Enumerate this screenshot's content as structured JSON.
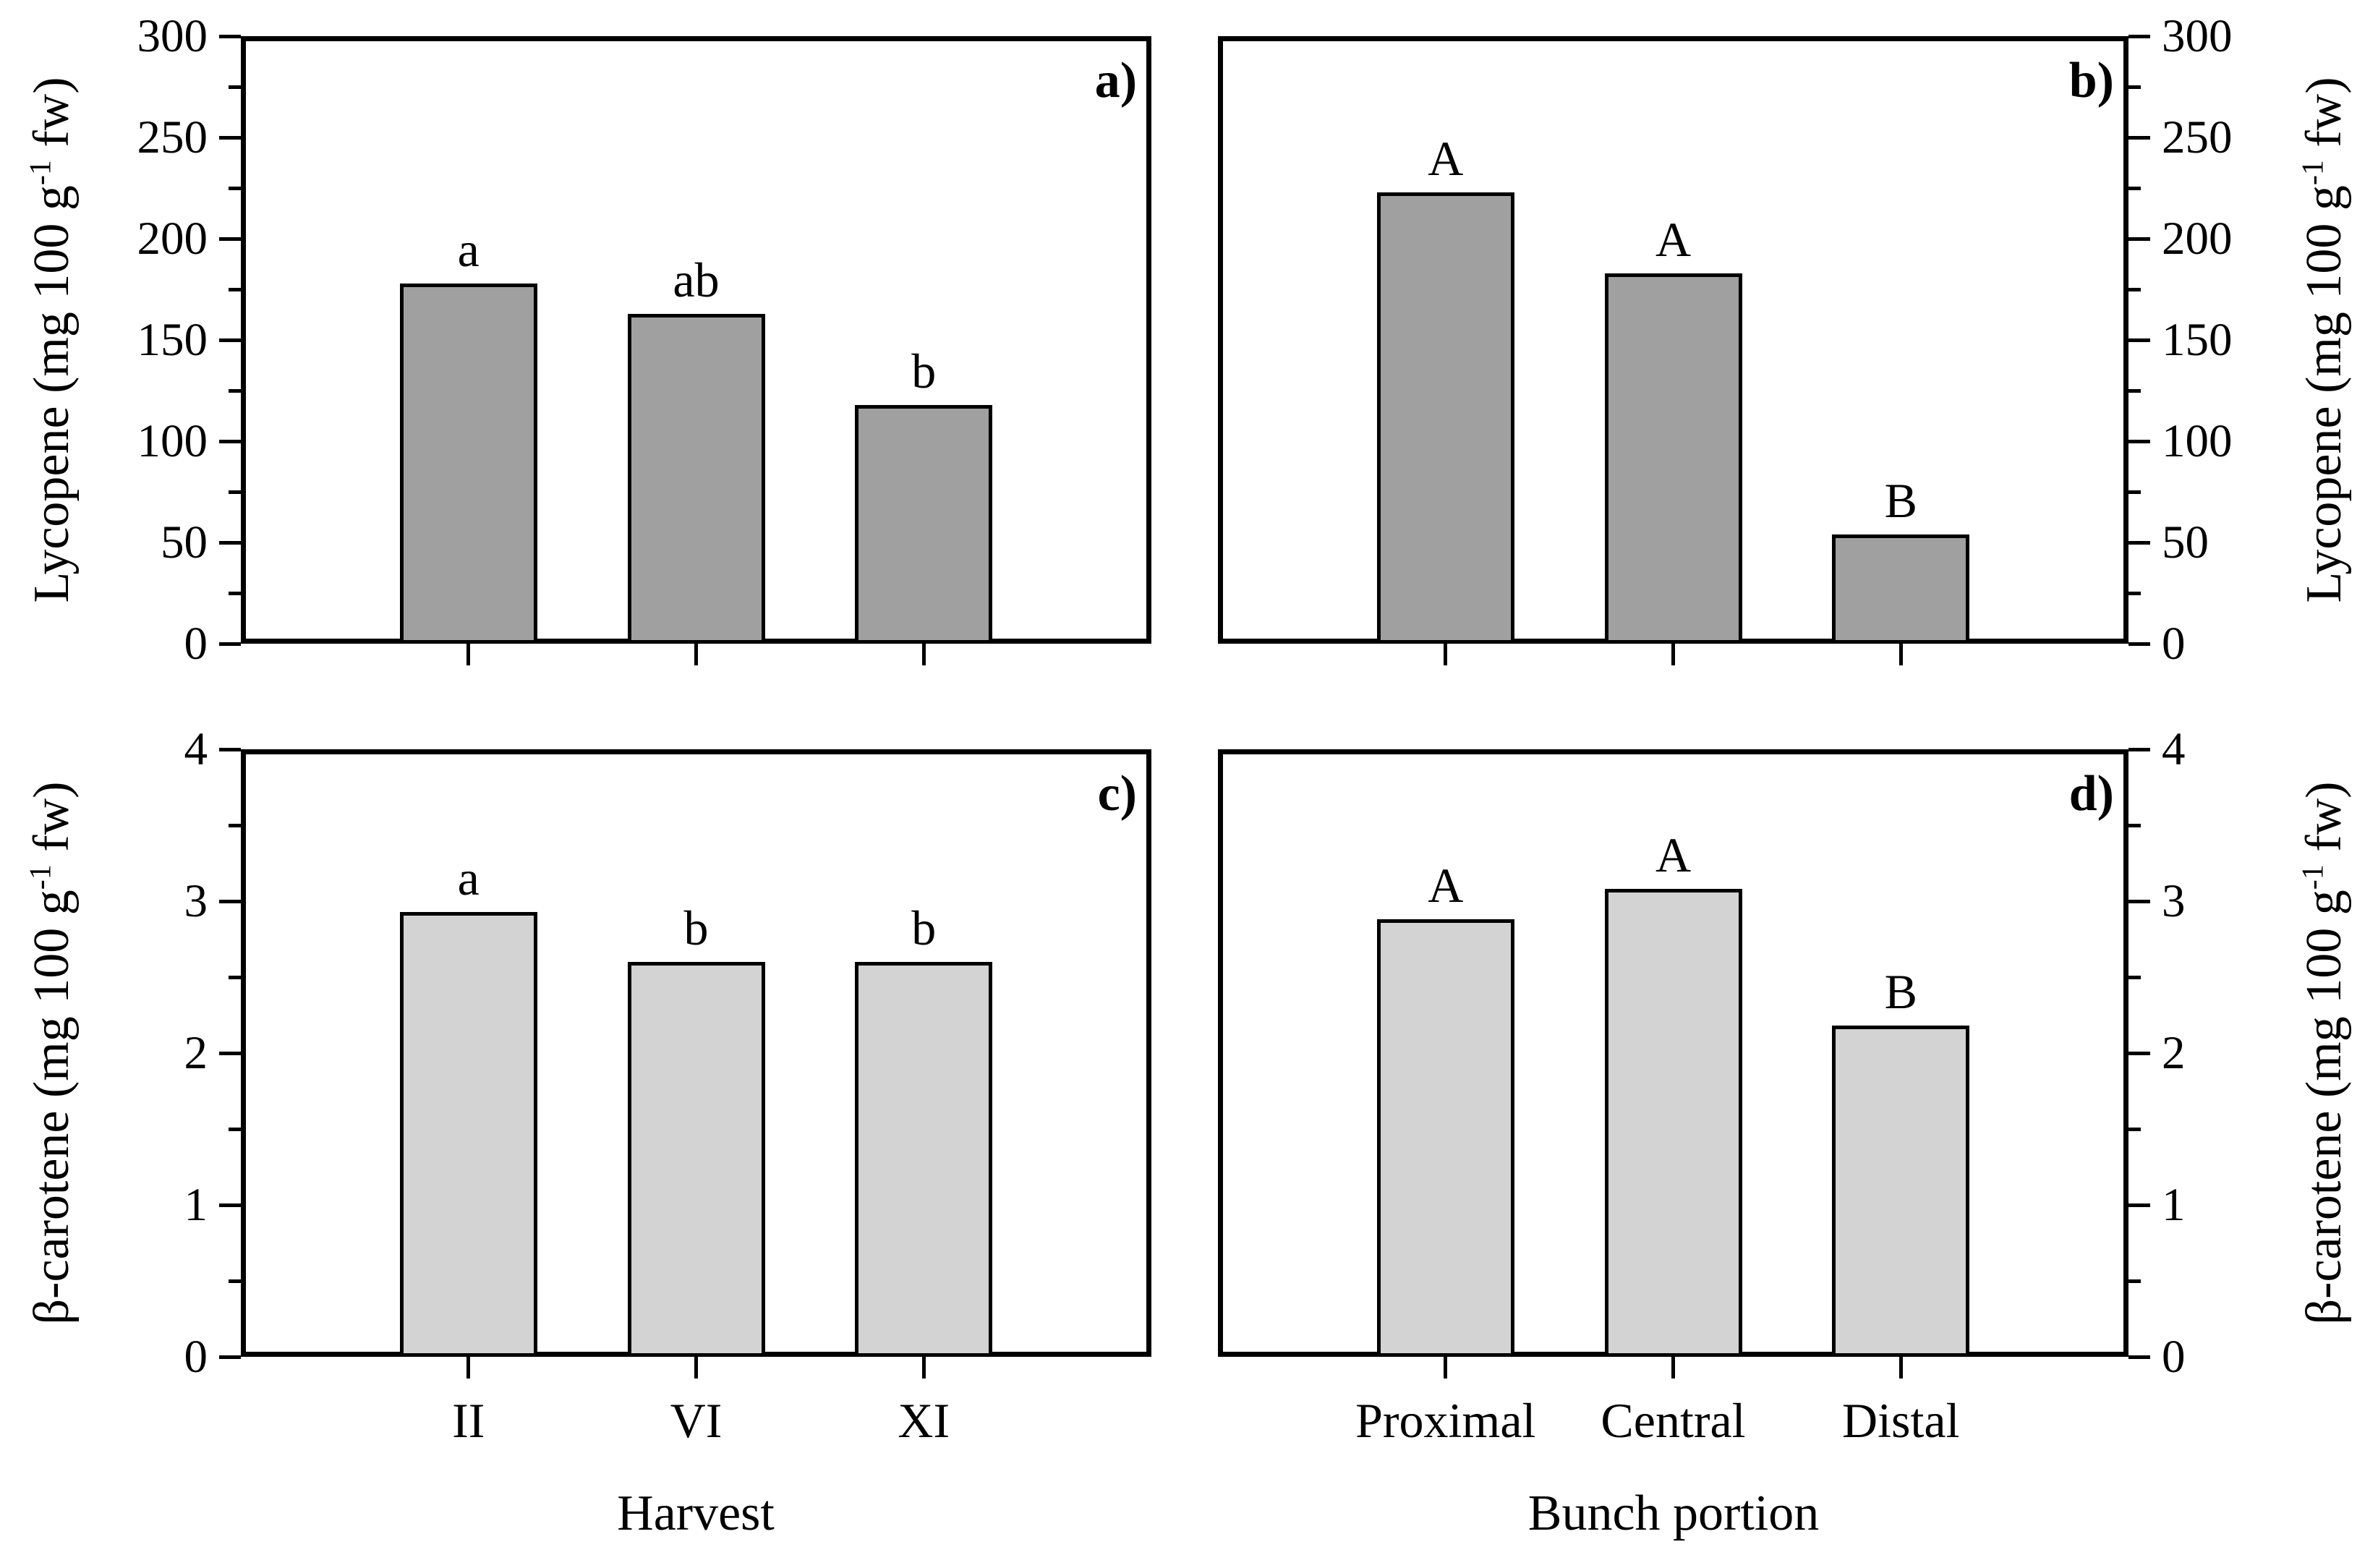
{
  "figure": {
    "background": "#ffffff",
    "frame_color": "#000000",
    "top_bar_color": "#a0a0a0",
    "bottom_bar_color": "#d3d3d3"
  },
  "axis_titles": {
    "x_harvest": "Harvest",
    "x_bunch": "Bunch portion"
  },
  "chart_data": [
    {
      "id": "a",
      "type": "bar",
      "panel_label": "a)",
      "y_axis_side": "left",
      "ylabel": "Lycopene (mg 100 g-1 fw)",
      "ylabel_parts": {
        "prefix": "Lycopene (mg 100 g",
        "sup": "-1",
        "suffix": " fw)"
      },
      "ylim": [
        0,
        300
      ],
      "major_tick_step": 50,
      "minor_tick_step": 25,
      "categories": [
        "II",
        "VI",
        "XI"
      ],
      "values": [
        178,
        163,
        118
      ],
      "sig_letters": [
        "a",
        "ab",
        "b"
      ],
      "show_x_tick_labels": false,
      "xlabel": "Harvest",
      "bar_color": "#a0a0a0",
      "grid": false
    },
    {
      "id": "b",
      "type": "bar",
      "panel_label": "b)",
      "y_axis_side": "right",
      "ylabel": "Lycopene (mg 100 g-1 fw)",
      "ylabel_parts": {
        "prefix": "Lycopene (mg 100 g",
        "sup": "-1",
        "suffix": " fw)"
      },
      "ylim": [
        0,
        300
      ],
      "major_tick_step": 50,
      "minor_tick_step": 25,
      "categories": [
        "Proximal",
        "Central",
        "Distal"
      ],
      "values": [
        223,
        183,
        54
      ],
      "sig_letters": [
        "A",
        "A",
        "B"
      ],
      "show_x_tick_labels": false,
      "xlabel": "Bunch portion",
      "bar_color": "#a0a0a0",
      "grid": false
    },
    {
      "id": "c",
      "type": "bar",
      "panel_label": "c)",
      "y_axis_side": "left",
      "ylabel": "β-carotene (mg 100 g-1 fw)",
      "ylabel_parts": {
        "prefix": "β-carotene (mg 100 g",
        "sup": "-1",
        "suffix": " fw)"
      },
      "ylim": [
        0,
        4
      ],
      "major_tick_step": 1,
      "minor_tick_step": 0.5,
      "categories": [
        "II",
        "VI",
        "XI"
      ],
      "values": [
        2.93,
        2.6,
        2.6
      ],
      "sig_letters": [
        "a",
        "b",
        "b"
      ],
      "show_x_tick_labels": true,
      "xlabel": "Harvest",
      "bar_color": "#d3d3d3",
      "grid": false
    },
    {
      "id": "d",
      "type": "bar",
      "panel_label": "d)",
      "y_axis_side": "right",
      "ylabel": "β-carotene (mg 100 g-1 fw)",
      "ylabel_parts": {
        "prefix": "β-carotene (mg 100 g",
        "sup": "-1",
        "suffix": " fw)"
      },
      "ylim": [
        0,
        4
      ],
      "major_tick_step": 1,
      "minor_tick_step": 0.5,
      "categories": [
        "Proximal",
        "Central",
        "Distal"
      ],
      "values": [
        2.88,
        3.08,
        2.18
      ],
      "sig_letters": [
        "A",
        "A",
        "B"
      ],
      "show_x_tick_labels": true,
      "xlabel": "Bunch portion",
      "bar_color": "#d3d3d3",
      "grid": false
    }
  ]
}
